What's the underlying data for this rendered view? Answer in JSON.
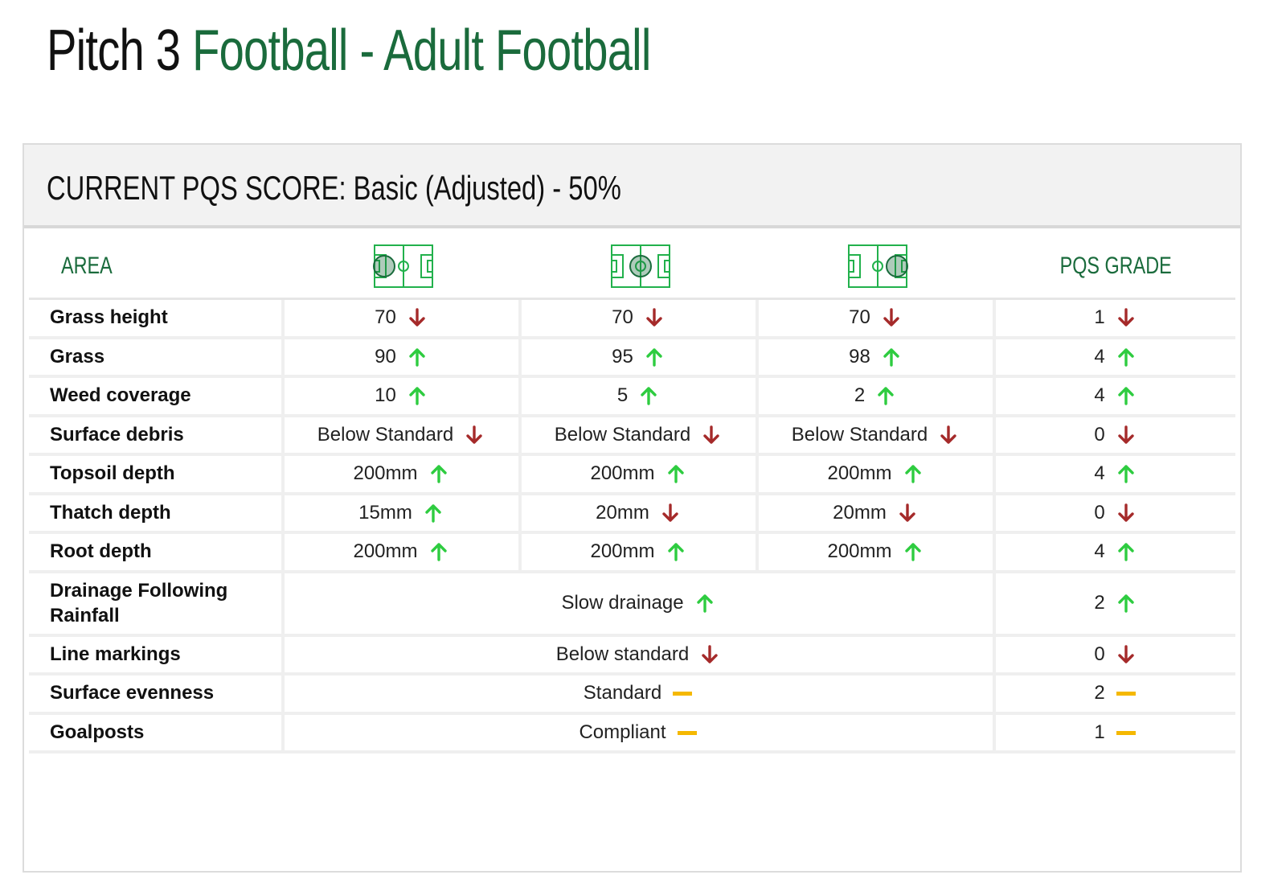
{
  "title": {
    "prefix": "Pitch 3",
    "accent": "Football - Adult Football"
  },
  "score": {
    "label": "CURRENT PQS SCORE: Basic (Adjusted) - 50%"
  },
  "columns": {
    "area": "AREA",
    "pitch_icons": [
      "pitch-end-left-icon",
      "pitch-center-icon",
      "pitch-end-right-icon"
    ],
    "grade": "PQS GRADE"
  },
  "colors": {
    "accent": "#1a6b3c",
    "up": "#2ecc40",
    "down": "#a52a2a",
    "neutral": "#f5b800"
  },
  "rows": [
    {
      "label": "Grass height",
      "cells": [
        {
          "v": "70",
          "i": "down"
        },
        {
          "v": "70",
          "i": "down"
        },
        {
          "v": "70",
          "i": "down"
        }
      ],
      "grade": {
        "v": "1",
        "i": "down"
      }
    },
    {
      "label": "Grass",
      "cells": [
        {
          "v": "90",
          "i": "up"
        },
        {
          "v": "95",
          "i": "up"
        },
        {
          "v": "98",
          "i": "up"
        }
      ],
      "grade": {
        "v": "4",
        "i": "up"
      }
    },
    {
      "label": "Weed coverage",
      "cells": [
        {
          "v": "10",
          "i": "up"
        },
        {
          "v": "5",
          "i": "up"
        },
        {
          "v": "2",
          "i": "up"
        }
      ],
      "grade": {
        "v": "4",
        "i": "up"
      }
    },
    {
      "label": "Surface debris",
      "cells": [
        {
          "v": "Below Standard",
          "i": "down"
        },
        {
          "v": "Below Standard",
          "i": "down"
        },
        {
          "v": "Below Standard",
          "i": "down"
        }
      ],
      "grade": {
        "v": "0",
        "i": "down"
      }
    },
    {
      "label": "Topsoil depth",
      "cells": [
        {
          "v": "200mm",
          "i": "up"
        },
        {
          "v": "200mm",
          "i": "up"
        },
        {
          "v": "200mm",
          "i": "up"
        }
      ],
      "grade": {
        "v": "4",
        "i": "up"
      }
    },
    {
      "label": "Thatch depth",
      "cells": [
        {
          "v": "15mm",
          "i": "up"
        },
        {
          "v": "20mm",
          "i": "down"
        },
        {
          "v": "20mm",
          "i": "down"
        }
      ],
      "grade": {
        "v": "0",
        "i": "down"
      }
    },
    {
      "label": "Root depth",
      "cells": [
        {
          "v": "200mm",
          "i": "up"
        },
        {
          "v": "200mm",
          "i": "up"
        },
        {
          "v": "200mm",
          "i": "up"
        }
      ],
      "grade": {
        "v": "4",
        "i": "up"
      }
    },
    {
      "label": "Drainage Following Rainfall",
      "span": {
        "v": "Slow drainage",
        "i": "up"
      },
      "grade": {
        "v": "2",
        "i": "up"
      },
      "tall": true
    },
    {
      "label": "Line markings",
      "span": {
        "v": "Below standard",
        "i": "down"
      },
      "grade": {
        "v": "0",
        "i": "down"
      }
    },
    {
      "label": "Surface evenness",
      "span": {
        "v": "Standard",
        "i": "neutral"
      },
      "grade": {
        "v": "2",
        "i": "neutral"
      }
    },
    {
      "label": "Goalposts",
      "span": {
        "v": "Compliant",
        "i": "neutral"
      },
      "grade": {
        "v": "1",
        "i": "neutral"
      }
    }
  ]
}
